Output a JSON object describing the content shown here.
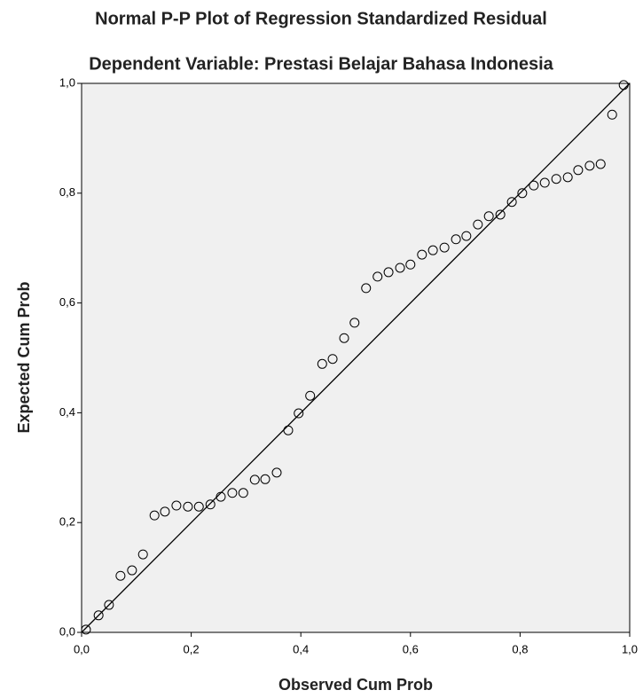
{
  "chart_data": {
    "type": "scatter",
    "title": "Normal P-P Plot of Regression Standardized Residual",
    "subtitle": "Dependent Variable: Prestasi Belajar Bahasa Indonesia",
    "x_label": "Observed Cum Prob",
    "y_label": "Expected Cum Prob",
    "xlim": [
      0,
      1
    ],
    "ylim": [
      0,
      1
    ],
    "xticks": [
      {
        "value": 0,
        "label": "0,0"
      },
      {
        "value": 0.2,
        "label": "0,2"
      },
      {
        "value": 0.4,
        "label": "0,4"
      },
      {
        "value": 0.6,
        "label": "0,6"
      },
      {
        "value": 0.8,
        "label": "0,8"
      },
      {
        "value": 1,
        "label": "1,0"
      }
    ],
    "yticks": [
      {
        "value": 0,
        "label": "0,0"
      },
      {
        "value": 0.2,
        "label": "0,2"
      },
      {
        "value": 0.4,
        "label": "0,4"
      },
      {
        "value": 0.6,
        "label": "0,6"
      },
      {
        "value": 0.8,
        "label": "0,8"
      },
      {
        "value": 1,
        "label": "1,0"
      }
    ],
    "color": "#000000",
    "x": [
      0.008,
      0.031,
      0.05,
      0.071,
      0.092,
      0.112,
      0.133,
      0.152,
      0.173,
      0.194,
      0.214,
      0.235,
      0.254,
      0.275,
      0.295,
      0.316,
      0.335,
      0.356,
      0.377,
      0.396,
      0.417,
      0.439,
      0.458,
      0.479,
      0.498,
      0.519,
      0.54,
      0.56,
      0.581,
      0.6,
      0.621,
      0.641,
      0.662,
      0.683,
      0.702,
      0.723,
      0.743,
      0.764,
      0.785,
      0.804,
      0.825,
      0.845,
      0.866,
      0.887,
      0.906,
      0.927,
      0.947,
      0.968,
      0.989
    ],
    "values": [
      0.005,
      0.031,
      0.05,
      0.103,
      0.113,
      0.142,
      0.213,
      0.22,
      0.231,
      0.229,
      0.229,
      0.233,
      0.247,
      0.254,
      0.254,
      0.278,
      0.279,
      0.291,
      0.368,
      0.399,
      0.431,
      0.489,
      0.498,
      0.536,
      0.564,
      0.627,
      0.648,
      0.656,
      0.664,
      0.67,
      0.688,
      0.696,
      0.701,
      0.716,
      0.722,
      0.743,
      0.758,
      0.761,
      0.784,
      0.8,
      0.814,
      0.819,
      0.826,
      0.829,
      0.842,
      0.85,
      0.853,
      0.943,
      0.997
    ]
  }
}
